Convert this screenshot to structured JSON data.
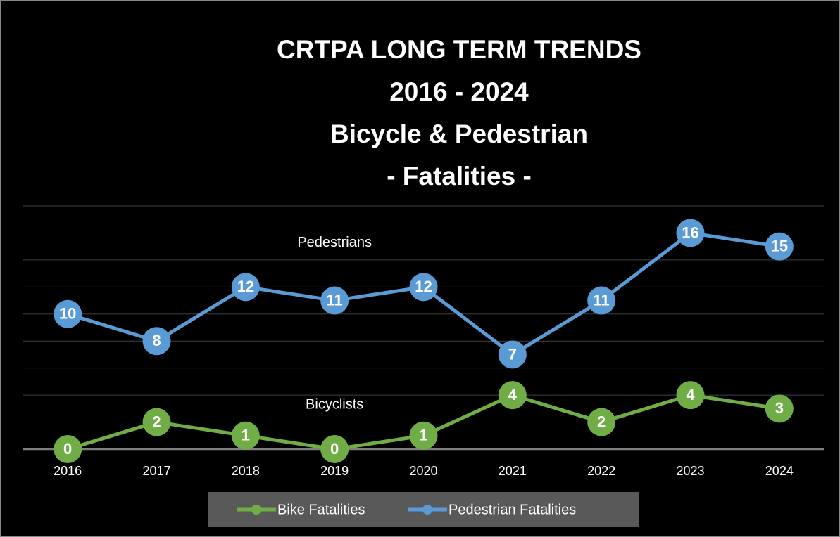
{
  "chart_data": {
    "type": "line",
    "title": [
      "CRTPA LONG TERM TRENDS",
      "2016 - 2024",
      "Bicycle & Pedestrian",
      "- Fatalities -"
    ],
    "categories": [
      "2016",
      "2017",
      "2018",
      "2019",
      "2020",
      "2021",
      "2022",
      "2023",
      "2024"
    ],
    "series": [
      {
        "name": "Bike Fatalities",
        "color": "#70ad47",
        "values": [
          0,
          2,
          1,
          0,
          1,
          4,
          2,
          4,
          3
        ]
      },
      {
        "name": "Pedestrian Fatalities",
        "color": "#5b9bd5",
        "values": [
          10,
          8,
          12,
          11,
          12,
          7,
          11,
          16,
          15
        ]
      }
    ],
    "annotations": [
      {
        "text": "Pedestrians",
        "x": "2019",
        "y": 15
      },
      {
        "text": "Bicyclists",
        "x": "2019",
        "y": 3
      }
    ],
    "ylim": [
      0,
      18
    ],
    "yticks": [
      0,
      2,
      4,
      6,
      8,
      10,
      12,
      14,
      16,
      18
    ],
    "grid": true,
    "legend": "bottom"
  }
}
